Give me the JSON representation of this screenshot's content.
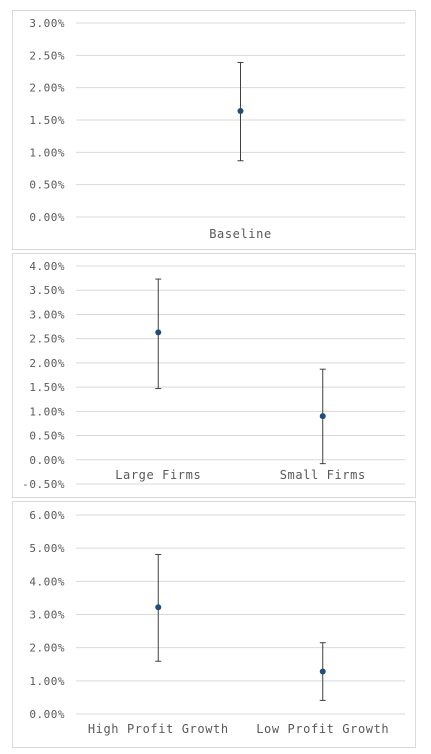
{
  "chart_data": [
    {
      "type": "scatter",
      "title": "",
      "categories": [
        "Baseline"
      ],
      "values": [
        1.64
      ],
      "error_low": [
        0.87
      ],
      "error_high": [
        2.39
      ],
      "ylim": [
        0.0,
        3.0
      ],
      "yticks": [
        "3.00%",
        "2.50%",
        "2.00%",
        "1.50%",
        "1.00%",
        "0.50%",
        "0.00%"
      ],
      "grid": true,
      "marker_color": "#1F4E79"
    },
    {
      "type": "scatter",
      "title": "",
      "categories": [
        "Large Firms",
        "Small Firms"
      ],
      "values": [
        2.63,
        0.9
      ],
      "error_low": [
        1.47,
        -0.08
      ],
      "error_high": [
        3.73,
        1.87
      ],
      "ylim": [
        -0.5,
        4.0
      ],
      "yticks": [
        "4.00%",
        "3.50%",
        "3.00%",
        "2.50%",
        "2.00%",
        "1.50%",
        "1.00%",
        "0.50%",
        "0.00%",
        "-0.50%"
      ],
      "grid": true,
      "marker_color": "#1F4E79"
    },
    {
      "type": "scatter",
      "title": "",
      "categories": [
        "High Profit Growth",
        "Low Profit Growth"
      ],
      "values": [
        3.22,
        1.28
      ],
      "error_low": [
        1.59,
        0.41
      ],
      "error_high": [
        4.81,
        2.15
      ],
      "ylim": [
        0.0,
        6.0
      ],
      "yticks": [
        "6.00%",
        "5.00%",
        "4.00%",
        "3.00%",
        "2.00%",
        "1.00%",
        "0.00%"
      ],
      "grid": true,
      "marker_color": "#1F4E79"
    }
  ]
}
